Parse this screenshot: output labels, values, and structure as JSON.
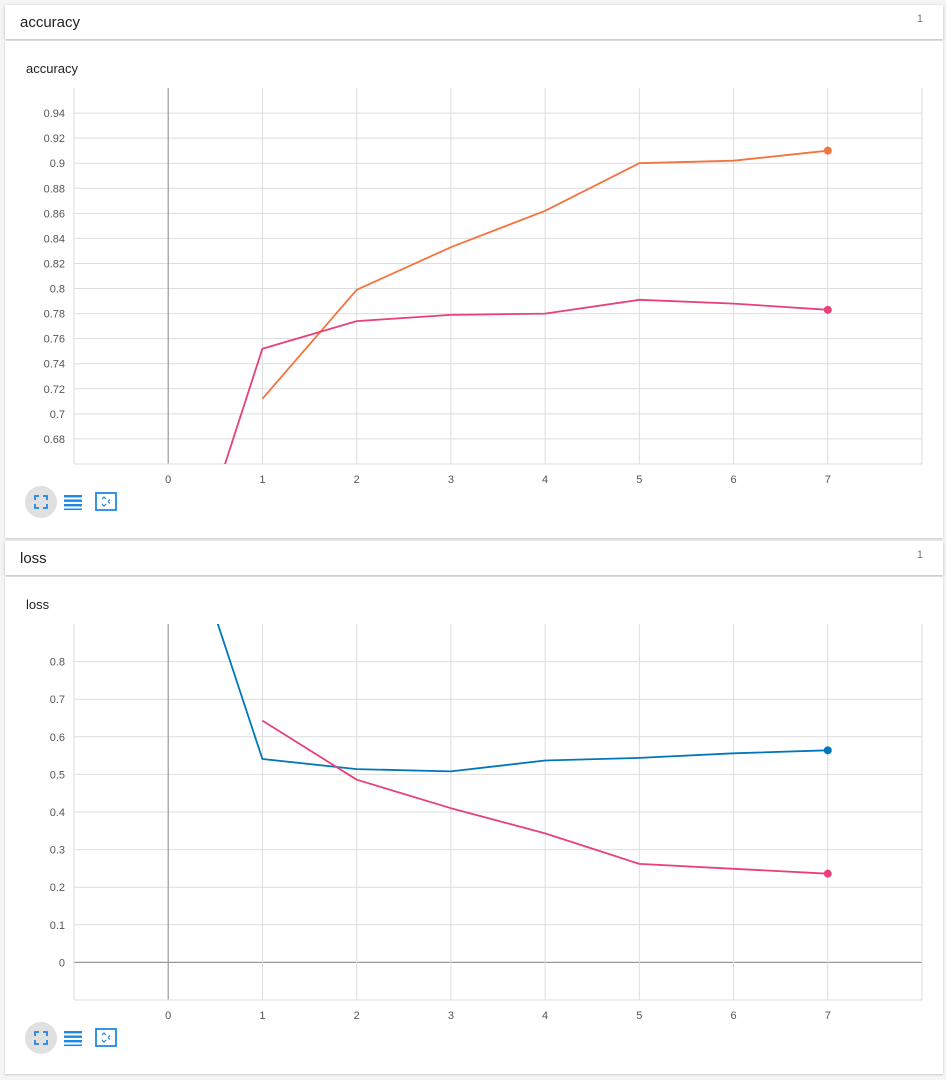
{
  "panels": [
    {
      "header_title": "accuracy",
      "header_count": "1",
      "chart_title": "accuracy",
      "chart_data": {
        "type": "line",
        "title": "accuracy",
        "xlabel": "",
        "ylabel": "",
        "xlim": [
          -1,
          8
        ],
        "ylim": [
          0.66,
          0.96
        ],
        "xticks": [
          0,
          1,
          2,
          3,
          4,
          5,
          6,
          7
        ],
        "yticks": [
          0.68,
          0.7,
          0.72,
          0.74,
          0.76,
          0.78,
          0.8,
          0.82,
          0.84,
          0.86,
          0.88,
          0.9,
          0.92,
          0.94
        ],
        "ytick_labels": [
          "0.68",
          "0.7",
          "0.72",
          "0.74",
          "0.76",
          "0.78",
          "0.8",
          "0.82",
          "0.84",
          "0.86",
          "0.88",
          "0.9",
          "0.92",
          "0.94"
        ],
        "grid": true,
        "series": [
          {
            "color": "#f4733f",
            "x": [
              1,
              2,
              3,
              4,
              5,
              6,
              7
            ],
            "y": [
              0.712,
              0.799,
              0.833,
              0.862,
              0.9,
              0.902,
              0.91
            ]
          },
          {
            "color": "#e8407a",
            "x": [
              0,
              1,
              2,
              3,
              4,
              5,
              6,
              7
            ],
            "y": [
              0.52,
              0.752,
              0.774,
              0.779,
              0.78,
              0.791,
              0.788,
              0.783
            ]
          }
        ]
      }
    },
    {
      "header_title": "loss",
      "header_count": "1",
      "chart_title": "loss",
      "chart_data": {
        "type": "line",
        "title": "loss",
        "xlabel": "",
        "ylabel": "",
        "xlim": [
          -1,
          8
        ],
        "ylim": [
          -0.1,
          0.9
        ],
        "xticks": [
          0,
          1,
          2,
          3,
          4,
          5,
          6,
          7
        ],
        "yticks": [
          0,
          0.1,
          0.2,
          0.3,
          0.4,
          0.5,
          0.6,
          0.7,
          0.8
        ],
        "ytick_labels": [
          "0",
          "0.1",
          "0.2",
          "0.3",
          "0.4",
          "0.5",
          "0.6",
          "0.7",
          "0.8"
        ],
        "grid": true,
        "series": [
          {
            "color": "#0077bb",
            "x": [
              0,
              1,
              2,
              3,
              4,
              5,
              6,
              7
            ],
            "y": [
              1.3,
              0.541,
              0.514,
              0.508,
              0.537,
              0.544,
              0.556,
              0.564
            ]
          },
          {
            "color": "#e8407a",
            "x": [
              1,
              2,
              3,
              4,
              5,
              6,
              7
            ],
            "y": [
              0.643,
              0.486,
              0.41,
              0.343,
              0.262,
              0.249,
              0.236
            ]
          }
        ]
      }
    }
  ],
  "toolbar_icons": [
    "fullscreen-icon",
    "list-icon",
    "fit-domain-icon"
  ],
  "icon_color": "#1e88e5"
}
